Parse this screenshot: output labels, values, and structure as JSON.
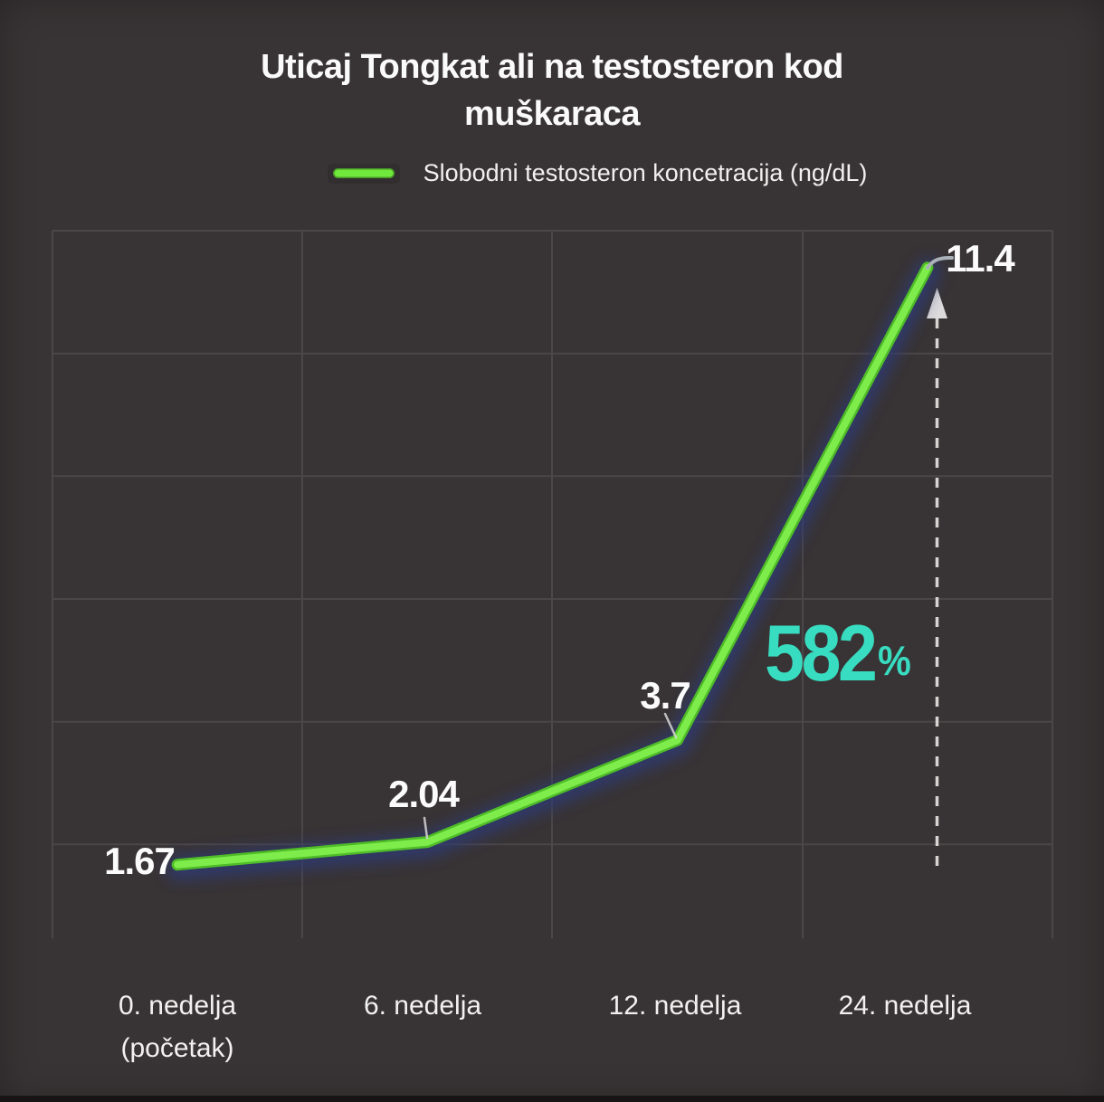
{
  "title": "Uticaj Tongkat ali na testosteron kod\nmuškaraca",
  "legend": {
    "label": "Slobodni testosteron koncetracija (ng/dL)"
  },
  "annotation": {
    "value": "582",
    "unit": "%"
  },
  "chart_data": {
    "type": "line",
    "title": "Uticaj Tongkat ali na testosteron kod muškaraca",
    "categories": [
      "0. nedelja (početak)",
      "6. nedelja",
      "12. nedelja",
      "24. nedelja"
    ],
    "categories_display": [
      "0. nedelja\n(početak)",
      "6. nedelja",
      "12. nedelja",
      "24. nedelja"
    ],
    "series": [
      {
        "name": "Slobodni testosteron koncetracija (ng/dL)",
        "values": [
          1.67,
          2.04,
          3.7,
          11.4
        ]
      }
    ],
    "values": [
      1.67,
      2.04,
      3.7,
      11.4
    ],
    "point_labels": [
      "1.67",
      "2.04",
      "3.7",
      "11.4"
    ],
    "annotation": "582%",
    "xlabel": "",
    "ylabel": "",
    "ylim": [
      0,
      12
    ],
    "grid": true,
    "legend_position": "top"
  },
  "colors": {
    "background": "#383334",
    "grid": "#4b4647",
    "line": "#70e83c",
    "line_highlight": "#7eed4b",
    "line_edge": "#4fbc28",
    "glow": "#2e3a74",
    "annotation": "#38dcc0",
    "arrow": "#d6d3d3",
    "text": "#fbfafa"
  }
}
